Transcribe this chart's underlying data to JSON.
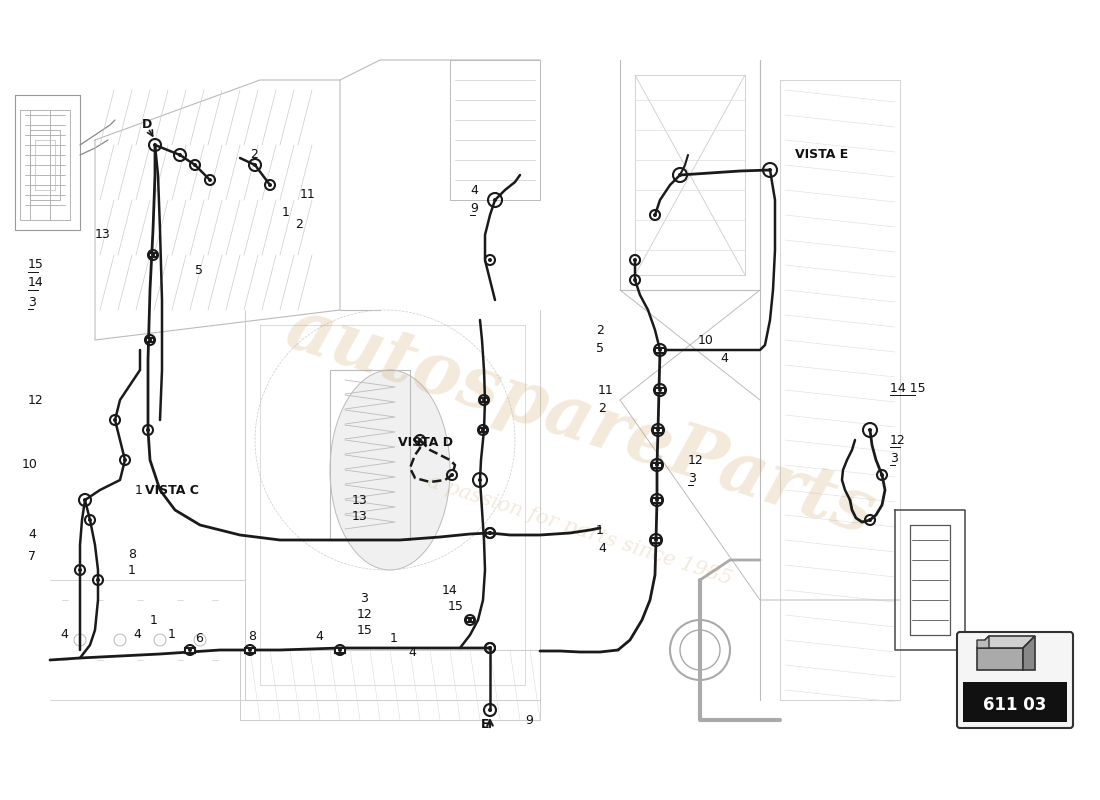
{
  "bg_color": "#ffffff",
  "lc": "#1a1a1a",
  "llc": "#999999",
  "mlc": "#555555",
  "part_number": "611 03",
  "watermark_text": "autospareParts",
  "watermark_sub": "a passion for parts since 1985",
  "fig_w": 11.0,
  "fig_h": 8.0,
  "dpi": 100
}
